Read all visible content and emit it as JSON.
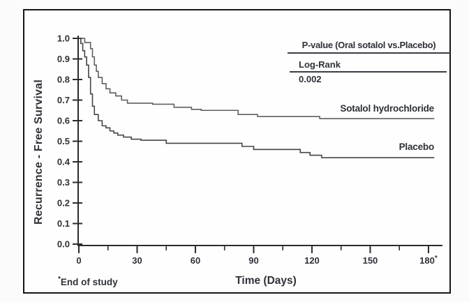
{
  "colors": {
    "ink": "#2e3138",
    "border": "#161616",
    "axis": "#2b2b2b",
    "curve_sotalol": "#5f5f5f",
    "curve_placebo": "#454545"
  },
  "legend": {
    "title": "P-value (Oral sotalol vs.Placebo)",
    "test_label": "Log-Rank",
    "p_value": "0.002"
  },
  "labels": {
    "sotalol_curve": "Sotalol hydrochloride",
    "placebo_curve": "Placebo",
    "y_axis_title": "Recurrence - Free Survival",
    "x_axis_title": "Time (Days)",
    "footnote_marker": "*",
    "footnote_text": "End of study"
  },
  "chart_data": {
    "type": "line",
    "subtype": "kaplan-meier-step",
    "title": "",
    "xlabel": "Time (Days)",
    "ylabel": "Recurrence - Free Survival",
    "xlim": [
      0,
      183
    ],
    "ylim": [
      0.0,
      1.0
    ],
    "grid": false,
    "legend_position": "top-right",
    "x_major_ticks": [
      0,
      30,
      60,
      90,
      120,
      150,
      180
    ],
    "x_tick_labels": [
      "0",
      "30",
      "60",
      "90",
      "120",
      "150",
      "180*"
    ],
    "x_minor_ticks": [
      15,
      45,
      75,
      105,
      135,
      165
    ],
    "y_ticks": [
      1.0,
      0.9,
      0.8,
      0.7,
      0.6,
      0.5,
      0.4,
      0.3,
      0.2,
      0.1,
      0.0
    ],
    "y_tick_labels": [
      "1.0",
      "0.9",
      "0.8",
      "0.7",
      "0.6",
      "0.5",
      "0.4",
      "0.3",
      "0.2",
      "0.1",
      "0.0"
    ],
    "annotations": {
      "p_value_comparison": "P-value (Oral sotalol vs.Placebo)",
      "log_rank": "Log-Rank",
      "p_value": "0.002",
      "end_of_study_day": 180
    },
    "series": [
      {
        "name": "Sotalol hydrochloride",
        "x": [
          0,
          3,
          6,
          7,
          8,
          9,
          10,
          12,
          14,
          16,
          19,
          22,
          25,
          38,
          49,
          58,
          63,
          82,
          92,
          124,
          183
        ],
        "y": [
          1.0,
          0.98,
          0.95,
          0.91,
          0.87,
          0.84,
          0.81,
          0.78,
          0.755,
          0.735,
          0.72,
          0.7,
          0.685,
          0.68,
          0.665,
          0.655,
          0.65,
          0.63,
          0.62,
          0.61,
          0.61
        ]
      },
      {
        "name": "Placebo",
        "x": [
          0,
          1,
          2,
          3,
          4,
          5,
          6,
          7,
          8,
          10,
          12,
          14,
          16,
          18,
          20,
          23,
          27,
          32,
          45,
          84,
          90,
          114,
          119,
          125,
          183
        ],
        "y": [
          1.0,
          0.975,
          0.94,
          0.91,
          0.87,
          0.81,
          0.73,
          0.67,
          0.63,
          0.6,
          0.575,
          0.565,
          0.55,
          0.54,
          0.53,
          0.52,
          0.51,
          0.505,
          0.49,
          0.475,
          0.46,
          0.445,
          0.432,
          0.42,
          0.42
        ]
      }
    ]
  }
}
